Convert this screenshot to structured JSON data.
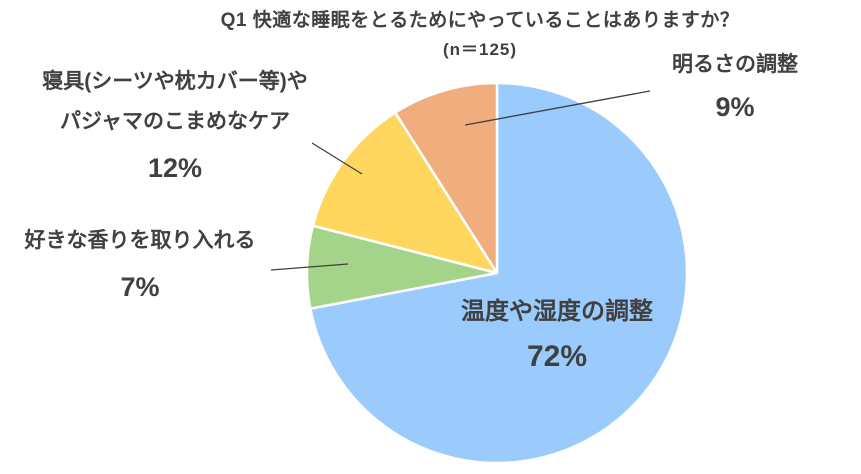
{
  "header": {
    "title": "Q1 快適な睡眠をとるためにやっていることはありますか？",
    "sample_note": "(n＝125)"
  },
  "chart_data": {
    "type": "pie",
    "title": "Q1 快適な睡眠をとるためにやっていることはありますか？",
    "sample_note": "(n＝125)",
    "sample_size": 125,
    "unit": "%",
    "direction": "clockwise",
    "start_angle": "12-oclock",
    "background": "#FFFFFF",
    "text_color": "#404040",
    "slice_border_color": "#FFFFFF",
    "leader_line_color": "#404040",
    "slices": [
      {
        "id": "temperature-humidity",
        "label": "温度や湿度の調整",
        "value": 72,
        "pct_label": "72%",
        "color": "#9ACBFC",
        "label_placement": "inside"
      },
      {
        "id": "scent",
        "label": "好きな香りを取り入れる",
        "value": 7,
        "pct_label": "7%",
        "color": "#A4D38A",
        "label_placement": "outside-left"
      },
      {
        "id": "bedding-pajama-care",
        "label": "寝具(シーツや枕カバー等)やパジャマのこまめなケア",
        "label_lines": [
          "寝具(シーツや枕カバー等)や",
          "パジャマのこまめなケア"
        ],
        "value": 12,
        "pct_label": "12%",
        "color": "#FFD75F",
        "label_placement": "outside-upper-left"
      },
      {
        "id": "brightness",
        "label": "明るさの調整",
        "value": 9,
        "pct_label": "9%",
        "color": "#F0AD7E",
        "label_placement": "outside-upper-right"
      }
    ]
  }
}
